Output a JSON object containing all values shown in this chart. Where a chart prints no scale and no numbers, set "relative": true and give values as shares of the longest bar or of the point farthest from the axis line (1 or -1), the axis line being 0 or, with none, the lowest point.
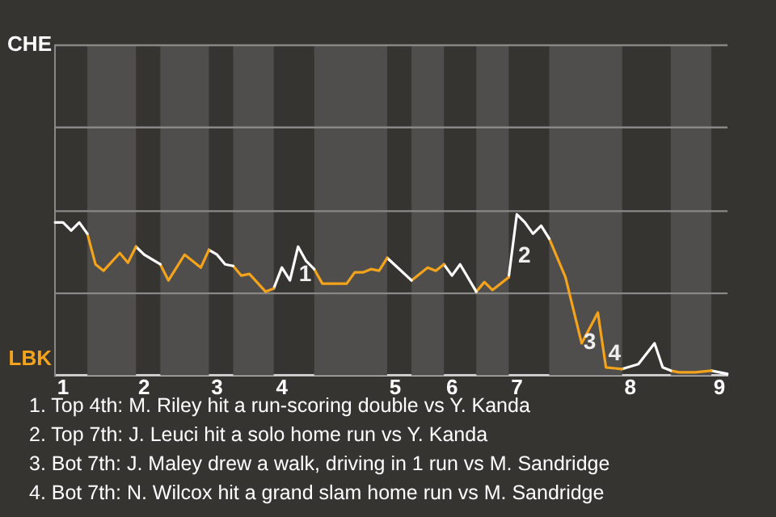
{
  "chart_data": {
    "type": "line",
    "relative": true,
    "marker": "none",
    "line_style": "solid",
    "categories": [
      null,
      "1",
      null,
      null,
      null,
      null,
      null,
      null,
      null,
      null,
      null,
      "2",
      null,
      null,
      null,
      null,
      null,
      null,
      null,
      null,
      "3",
      null,
      null,
      null,
      null,
      null,
      null,
      null,
      "4",
      null,
      null,
      null,
      null,
      null,
      null,
      null,
      null,
      null,
      null,
      null,
      null,
      null,
      "5",
      null,
      null,
      null,
      null,
      null,
      null,
      "6",
      null,
      null,
      null,
      null,
      null,
      null,
      null,
      "7",
      null,
      null,
      null,
      null,
      null,
      null,
      null,
      null,
      null,
      null,
      null,
      null,
      null,
      "8",
      null,
      null,
      null,
      null,
      null,
      null,
      null,
      null,
      null,
      null,
      "9",
      null
    ],
    "series": [
      {
        "color": "#ffffff",
        "values": [
          0.95,
          0.95,
          0.9,
          0.95,
          0.88,
          null,
          null,
          null,
          null,
          null,
          null,
          null,
          null,
          null,
          null,
          null,
          null,
          null,
          null,
          null,
          null,
          null,
          null,
          null,
          null,
          null,
          null,
          null,
          null,
          null,
          null,
          null,
          null,
          null,
          null,
          null,
          null,
          null,
          null,
          null,
          null,
          null,
          null,
          null,
          null,
          null,
          null,
          null,
          null,
          null,
          null,
          null,
          null,
          null,
          null,
          null,
          null,
          null,
          null,
          null,
          null,
          null,
          null,
          null,
          null,
          null,
          null,
          null,
          null,
          null,
          null,
          null,
          null,
          null,
          null,
          null,
          null,
          null,
          null,
          null,
          null,
          null,
          null,
          null
        ]
      },
      {
        "color": "#f5a31a",
        "values": [
          null,
          null,
          null,
          null,
          0.88,
          0.69,
          0.65,
          null,
          0.76,
          0.7,
          0.8,
          null,
          null,
          null,
          null,
          null,
          null,
          null,
          null,
          null,
          null,
          null,
          null,
          null,
          null,
          null,
          null,
          null,
          null,
          null,
          null,
          null,
          null,
          null,
          null,
          null,
          null,
          null,
          null,
          null,
          null,
          null,
          null,
          null,
          null,
          null,
          null,
          null,
          null,
          null,
          null,
          null,
          null,
          null,
          null,
          null,
          null,
          null,
          null,
          null,
          null,
          null,
          null,
          null,
          null,
          null,
          null,
          null,
          null,
          null,
          null,
          null,
          null,
          null,
          null,
          null,
          null,
          null,
          null,
          null,
          null,
          null,
          null,
          null
        ]
      },
      {
        "color": "#ffffff",
        "values": [
          null,
          null,
          null,
          null,
          null,
          null,
          null,
          null,
          null,
          null,
          0.8,
          0.75,
          0.72,
          0.69,
          null,
          null,
          null,
          null,
          null,
          null,
          null,
          null,
          null,
          null,
          null,
          null,
          null,
          null,
          null,
          null,
          null,
          null,
          null,
          null,
          null,
          null,
          null,
          null,
          null,
          null,
          null,
          null,
          null,
          null,
          null,
          null,
          null,
          null,
          null,
          null,
          null,
          null,
          null,
          null,
          null,
          null,
          null,
          null,
          null,
          null,
          null,
          null,
          null,
          null,
          null,
          null,
          null,
          null,
          null,
          null,
          null,
          null,
          null,
          null,
          null,
          null,
          null,
          null,
          null,
          null,
          null,
          null,
          null,
          null
        ]
      },
      {
        "color": "#f5a31a",
        "values": [
          null,
          null,
          null,
          null,
          null,
          null,
          null,
          null,
          null,
          null,
          null,
          null,
          null,
          0.69,
          0.59,
          null,
          0.75,
          null,
          0.67,
          0.78,
          null,
          null,
          null,
          null,
          null,
          null,
          null,
          null,
          null,
          null,
          null,
          null,
          null,
          null,
          null,
          null,
          null,
          null,
          null,
          null,
          null,
          null,
          null,
          null,
          null,
          null,
          null,
          null,
          null,
          null,
          null,
          null,
          null,
          null,
          null,
          null,
          null,
          null,
          null,
          null,
          null,
          null,
          null,
          null,
          null,
          null,
          null,
          null,
          null,
          null,
          null,
          null,
          null,
          null,
          null,
          null,
          null,
          null,
          null,
          null,
          null,
          null,
          null,
          null
        ]
      },
      {
        "color": "#ffffff",
        "values": [
          null,
          null,
          null,
          null,
          null,
          null,
          null,
          null,
          null,
          null,
          null,
          null,
          null,
          null,
          null,
          null,
          null,
          null,
          null,
          0.78,
          0.75,
          0.69,
          0.68,
          null,
          null,
          null,
          null,
          null,
          null,
          null,
          null,
          null,
          null,
          null,
          null,
          null,
          null,
          null,
          null,
          null,
          null,
          null,
          null,
          null,
          null,
          null,
          null,
          null,
          null,
          null,
          null,
          null,
          null,
          null,
          null,
          null,
          null,
          null,
          null,
          null,
          null,
          null,
          null,
          null,
          null,
          null,
          null,
          null,
          null,
          null,
          null,
          null,
          null,
          null,
          null,
          null,
          null,
          null,
          null,
          null,
          null,
          null,
          null,
          null
        ]
      },
      {
        "color": "#f5a31a",
        "values": [
          null,
          null,
          null,
          null,
          null,
          null,
          null,
          null,
          null,
          null,
          null,
          null,
          null,
          null,
          null,
          null,
          null,
          null,
          null,
          null,
          null,
          null,
          0.68,
          0.62,
          0.63,
          null,
          0.52,
          0.54,
          null,
          null,
          null,
          null,
          null,
          null,
          null,
          null,
          null,
          null,
          null,
          null,
          null,
          null,
          null,
          null,
          null,
          null,
          null,
          null,
          null,
          null,
          null,
          null,
          null,
          null,
          null,
          null,
          null,
          null,
          null,
          null,
          null,
          null,
          null,
          null,
          null,
          null,
          null,
          null,
          null,
          null,
          null,
          null,
          null,
          null,
          null,
          null,
          null,
          null,
          null,
          null,
          null,
          null,
          null,
          null
        ]
      },
      {
        "color": "#ffffff",
        "values": [
          null,
          null,
          null,
          null,
          null,
          null,
          null,
          null,
          null,
          null,
          null,
          null,
          null,
          null,
          null,
          null,
          null,
          null,
          null,
          null,
          null,
          null,
          null,
          null,
          null,
          null,
          null,
          0.54,
          0.67,
          0.59,
          0.8,
          0.71,
          0.66,
          null,
          null,
          null,
          null,
          null,
          null,
          null,
          null,
          null,
          null,
          null,
          null,
          null,
          null,
          null,
          null,
          null,
          null,
          null,
          null,
          null,
          null,
          null,
          null,
          null,
          null,
          null,
          null,
          null,
          null,
          null,
          null,
          null,
          null,
          null,
          null,
          null,
          null,
          null,
          null,
          null,
          null,
          null,
          null,
          null,
          null,
          null,
          null,
          null,
          null,
          null
        ]
      },
      {
        "color": "#f5a31a",
        "values": [
          null,
          null,
          null,
          null,
          null,
          null,
          null,
          null,
          null,
          null,
          null,
          null,
          null,
          null,
          null,
          null,
          null,
          null,
          null,
          null,
          null,
          null,
          null,
          null,
          null,
          null,
          null,
          null,
          null,
          null,
          null,
          null,
          0.66,
          0.57,
          null,
          null,
          0.57,
          0.64,
          0.64,
          0.66,
          0.65,
          0.73,
          null,
          null,
          null,
          null,
          null,
          null,
          null,
          null,
          null,
          null,
          null,
          null,
          null,
          null,
          null,
          null,
          null,
          null,
          null,
          null,
          null,
          null,
          null,
          null,
          null,
          null,
          null,
          null,
          null,
          null,
          null,
          null,
          null,
          null,
          null,
          null,
          null,
          null,
          null,
          null,
          null,
          null
        ]
      },
      {
        "color": "#ffffff",
        "values": [
          null,
          null,
          null,
          null,
          null,
          null,
          null,
          null,
          null,
          null,
          null,
          null,
          null,
          null,
          null,
          null,
          null,
          null,
          null,
          null,
          null,
          null,
          null,
          null,
          null,
          null,
          null,
          null,
          null,
          null,
          null,
          null,
          null,
          null,
          null,
          null,
          null,
          null,
          null,
          null,
          null,
          0.73,
          null,
          null,
          0.59,
          null,
          null,
          null,
          null,
          null,
          null,
          null,
          null,
          null,
          null,
          null,
          null,
          null,
          null,
          null,
          null,
          null,
          null,
          null,
          null,
          null,
          null,
          null,
          null,
          null,
          null,
          null,
          null,
          null,
          null,
          null,
          null,
          null,
          null,
          null,
          null,
          null,
          null,
          null
        ]
      },
      {
        "color": "#f5a31a",
        "values": [
          null,
          null,
          null,
          null,
          null,
          null,
          null,
          null,
          null,
          null,
          null,
          null,
          null,
          null,
          null,
          null,
          null,
          null,
          null,
          null,
          null,
          null,
          null,
          null,
          null,
          null,
          null,
          null,
          null,
          null,
          null,
          null,
          null,
          null,
          null,
          null,
          null,
          null,
          null,
          null,
          null,
          null,
          null,
          null,
          0.59,
          null,
          0.67,
          0.65,
          0.69,
          null,
          null,
          null,
          null,
          null,
          null,
          null,
          null,
          null,
          null,
          null,
          null,
          null,
          null,
          null,
          null,
          null,
          null,
          null,
          null,
          null,
          null,
          null,
          null,
          null,
          null,
          null,
          null,
          null,
          null,
          null,
          null,
          null,
          null,
          null
        ]
      },
      {
        "color": "#ffffff",
        "values": [
          null,
          null,
          null,
          null,
          null,
          null,
          null,
          null,
          null,
          null,
          null,
          null,
          null,
          null,
          null,
          null,
          null,
          null,
          null,
          null,
          null,
          null,
          null,
          null,
          null,
          null,
          null,
          null,
          null,
          null,
          null,
          null,
          null,
          null,
          null,
          null,
          null,
          null,
          null,
          null,
          null,
          null,
          null,
          null,
          null,
          null,
          null,
          null,
          0.69,
          0.62,
          0.69,
          null,
          0.52,
          null,
          null,
          null,
          null,
          null,
          null,
          null,
          null,
          null,
          null,
          null,
          null,
          null,
          null,
          null,
          null,
          null,
          null,
          null,
          null,
          null,
          null,
          null,
          null,
          null,
          null,
          null,
          null,
          null,
          null,
          null
        ]
      },
      {
        "color": "#f5a31a",
        "values": [
          null,
          null,
          null,
          null,
          null,
          null,
          null,
          null,
          null,
          null,
          null,
          null,
          null,
          null,
          null,
          null,
          null,
          null,
          null,
          null,
          null,
          null,
          null,
          null,
          null,
          null,
          null,
          null,
          null,
          null,
          null,
          null,
          null,
          null,
          null,
          null,
          null,
          null,
          null,
          null,
          null,
          null,
          null,
          null,
          null,
          null,
          null,
          null,
          null,
          null,
          null,
          null,
          0.52,
          0.58,
          0.53,
          null,
          0.61,
          null,
          null,
          null,
          null,
          null,
          null,
          null,
          null,
          null,
          null,
          null,
          null,
          null,
          null,
          null,
          null,
          null,
          null,
          null,
          null,
          null,
          null,
          null,
          null,
          null,
          null,
          null
        ]
      },
      {
        "color": "#ffffff",
        "values": [
          null,
          null,
          null,
          null,
          null,
          null,
          null,
          null,
          null,
          null,
          null,
          null,
          null,
          null,
          null,
          null,
          null,
          null,
          null,
          null,
          null,
          null,
          null,
          null,
          null,
          null,
          null,
          null,
          null,
          null,
          null,
          null,
          null,
          null,
          null,
          null,
          null,
          null,
          null,
          null,
          null,
          null,
          null,
          null,
          null,
          null,
          null,
          null,
          null,
          null,
          null,
          null,
          null,
          null,
          null,
          null,
          0.61,
          1,
          0.95,
          0.88,
          0.93,
          0.85,
          null,
          null,
          null,
          null,
          null,
          null,
          null,
          null,
          null,
          null,
          null,
          null,
          null,
          null,
          null,
          null,
          null,
          null,
          null,
          null,
          null,
          null
        ]
      },
      {
        "color": "#f5a31a",
        "values": [
          null,
          null,
          null,
          null,
          null,
          null,
          null,
          null,
          null,
          null,
          null,
          null,
          null,
          null,
          null,
          null,
          null,
          null,
          null,
          null,
          null,
          null,
          null,
          null,
          null,
          null,
          null,
          null,
          null,
          null,
          null,
          null,
          null,
          null,
          null,
          null,
          null,
          null,
          null,
          null,
          null,
          null,
          null,
          null,
          null,
          null,
          null,
          null,
          null,
          null,
          null,
          null,
          null,
          null,
          null,
          null,
          null,
          null,
          null,
          null,
          null,
          0.85,
          null,
          0.61,
          null,
          0.2,
          null,
          0.39,
          0.05,
          null,
          0.04,
          null,
          null,
          null,
          null,
          null,
          null,
          null,
          null,
          null,
          null,
          null,
          null,
          null
        ]
      },
      {
        "color": "#ffffff",
        "values": [
          null,
          null,
          null,
          null,
          null,
          null,
          null,
          null,
          null,
          null,
          null,
          null,
          null,
          null,
          null,
          null,
          null,
          null,
          null,
          null,
          null,
          null,
          null,
          null,
          null,
          null,
          null,
          null,
          null,
          null,
          null,
          null,
          null,
          null,
          null,
          null,
          null,
          null,
          null,
          null,
          null,
          null,
          null,
          null,
          null,
          null,
          null,
          null,
          null,
          null,
          null,
          null,
          null,
          null,
          null,
          null,
          null,
          null,
          null,
          null,
          null,
          null,
          null,
          null,
          null,
          null,
          null,
          null,
          null,
          null,
          0.04,
          null,
          0.07,
          null,
          0.2,
          0.05,
          0.03,
          null,
          null,
          null,
          null,
          null,
          null,
          null
        ]
      },
      {
        "color": "#f5a31a",
        "values": [
          null,
          null,
          null,
          null,
          null,
          null,
          null,
          null,
          null,
          null,
          null,
          null,
          null,
          null,
          null,
          null,
          null,
          null,
          null,
          null,
          null,
          null,
          null,
          null,
          null,
          null,
          null,
          null,
          null,
          null,
          null,
          null,
          null,
          null,
          null,
          null,
          null,
          null,
          null,
          null,
          null,
          null,
          null,
          null,
          null,
          null,
          null,
          null,
          null,
          null,
          null,
          null,
          null,
          null,
          null,
          null,
          null,
          null,
          null,
          null,
          null,
          null,
          null,
          null,
          null,
          null,
          null,
          null,
          null,
          null,
          null,
          null,
          null,
          null,
          null,
          null,
          0.03,
          0.02,
          null,
          0.02,
          null,
          0.03,
          null,
          null
        ]
      },
      {
        "color": "#ffffff",
        "values": [
          null,
          null,
          null,
          null,
          null,
          null,
          null,
          null,
          null,
          null,
          null,
          null,
          null,
          null,
          null,
          null,
          null,
          null,
          null,
          null,
          null,
          null,
          null,
          null,
          null,
          null,
          null,
          null,
          null,
          null,
          null,
          null,
          null,
          null,
          null,
          null,
          null,
          null,
          null,
          null,
          null,
          null,
          null,
          null,
          null,
          null,
          null,
          null,
          null,
          null,
          null,
          null,
          null,
          null,
          null,
          null,
          null,
          null,
          null,
          null,
          null,
          null,
          null,
          null,
          null,
          null,
          null,
          null,
          null,
          null,
          null,
          null,
          null,
          null,
          null,
          null,
          null,
          null,
          null,
          null,
          null,
          0.03,
          null,
          0.01
        ]
      }
    ],
    "ref_lines": [
      {
        "axis": "y",
        "value": 0.51,
        "color": "#8a8886"
      },
      {
        "axis": "y",
        "value": 1.02,
        "color": "#8a8886"
      },
      {
        "axis": "y",
        "value": 1.54,
        "color": "#8a8886"
      },
      {
        "axis": "y",
        "value": 2.05,
        "color": "#8a8886"
      }
    ],
    "annotations": [
      "CHE",
      "LBK",
      "1",
      "2",
      "3",
      "4",
      "1. Top 4th: M. Riley hit a run-scoring double vs Y. Kanda",
      "2. Top 7th: J. Leuci hit a solo home run vs Y. Kanda",
      "3. Bot 7th: J. Maley drew a walk, driving in 1 run vs M. Sandridge",
      "4. Bot 7th: N. Wilcox hit a grand slam home run vs M. Sandridge"
    ]
  }
}
